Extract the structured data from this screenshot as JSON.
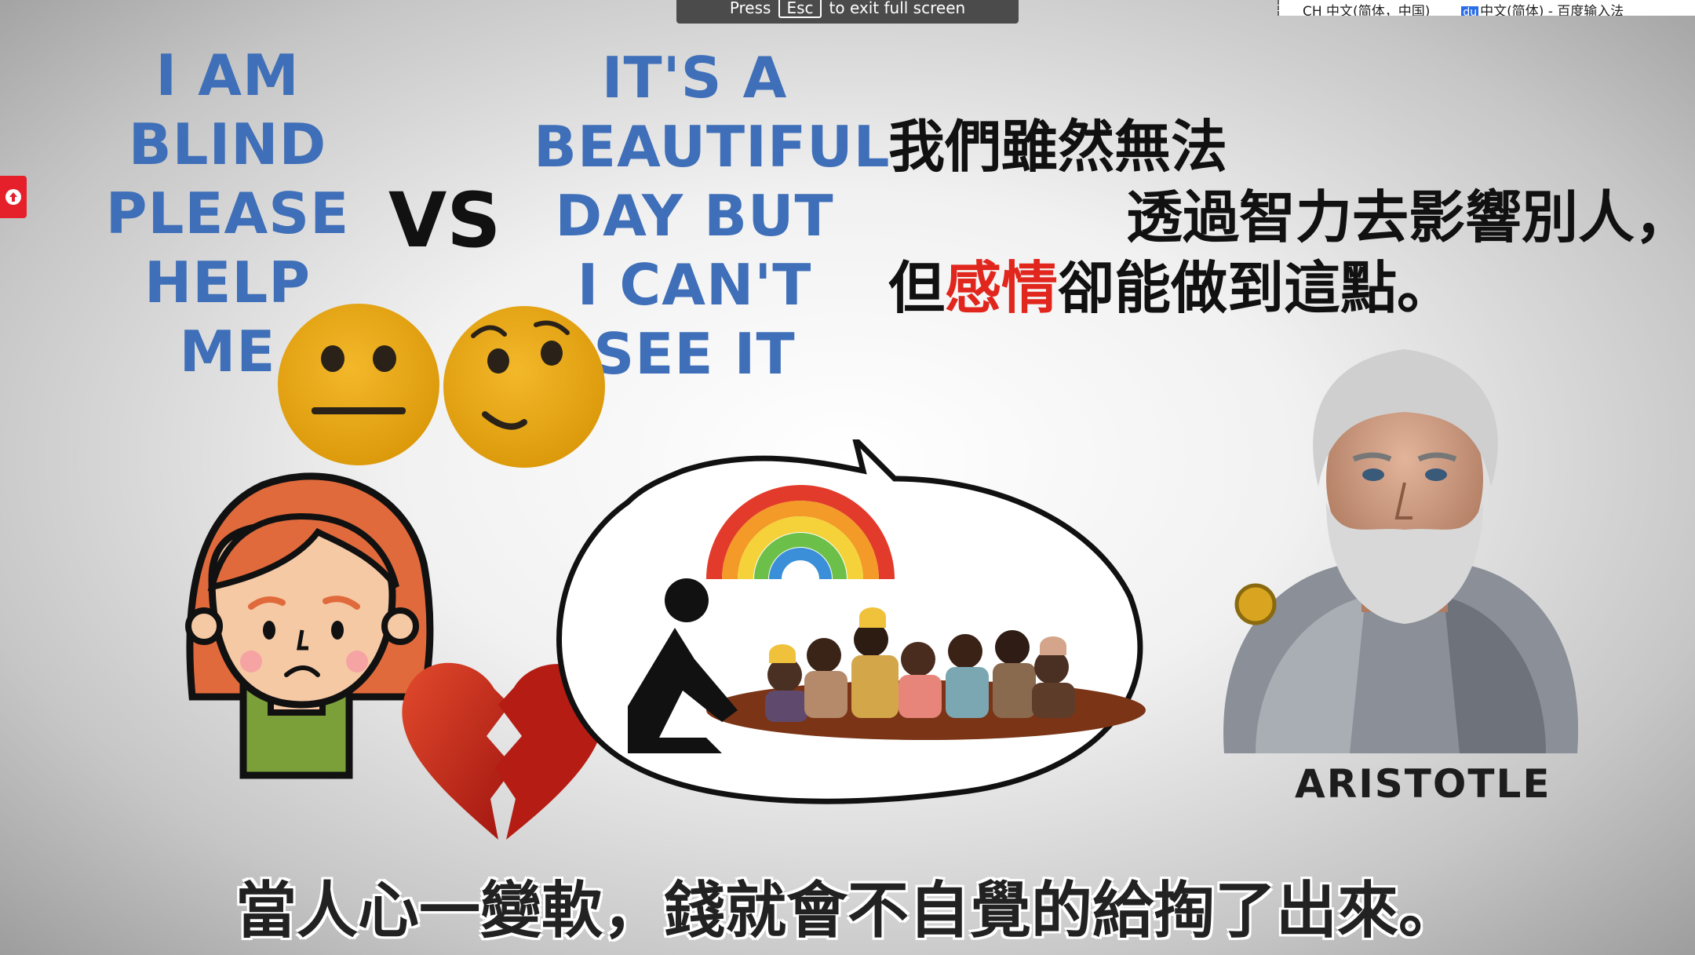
{
  "overlay": {
    "fullscreen_prefix": "Press",
    "fullscreen_key": "Esc",
    "fullscreen_suffix": "to exit full screen",
    "ime_locale": "CH 中文(简体，中国)",
    "ime_name": "中文(简体) - 百度输入法",
    "ime_badge": "du"
  },
  "slide": {
    "left_sign": [
      "I AM",
      "BLIND",
      "PLEASE",
      "HELP",
      "ME"
    ],
    "vs": "VS",
    "right_sign": [
      "IT'S A",
      "BEAUTIFUL",
      "DAY BUT",
      "I CAN'T",
      "SEE IT"
    ],
    "quote_line1": "我們雖然無法",
    "quote_line2": "透過智力去影響別人，",
    "quote_line3_pre": "但",
    "quote_line3_highlight": "感情",
    "quote_line3_post": "卻能做到這點。",
    "portrait_caption": "ARISTOTLE",
    "subtitle": "當人心一變軟，錢就會不自覺的給掏了出來。"
  },
  "colors": {
    "sign_text": "#3f6fb8",
    "highlight": "#e0261d",
    "emoji_yellow": "#e8a90e",
    "heart_red": "#c0271d",
    "side_button": "#e5202a"
  },
  "icons": [
    "neutral-face-icon",
    "smile-face-icon",
    "broken-heart-icon",
    "rainbow-icon",
    "upload-icon"
  ]
}
